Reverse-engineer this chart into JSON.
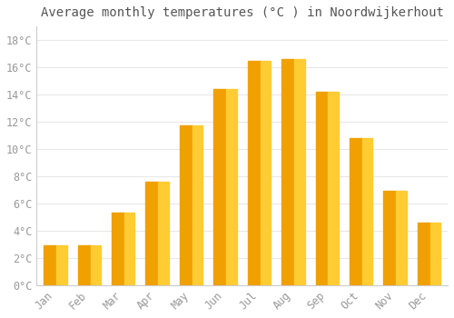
{
  "months": [
    "Jan",
    "Feb",
    "Mar",
    "Apr",
    "May",
    "Jun",
    "Jul",
    "Aug",
    "Sep",
    "Oct",
    "Nov",
    "Dec"
  ],
  "temperatures": [
    2.9,
    2.9,
    5.3,
    7.6,
    11.7,
    14.4,
    16.5,
    16.6,
    14.2,
    10.8,
    6.9,
    4.6
  ],
  "bar_color_bottom": "#F5A800",
  "bar_color_top": "#FFD966",
  "title": "Average monthly temperatures (°C ) in Noordwijkerhout",
  "ylabel_ticks": [
    "0°C",
    "2°C",
    "4°C",
    "6°C",
    "8°C",
    "10°C",
    "12°C",
    "14°C",
    "16°C",
    "18°C"
  ],
  "ytick_values": [
    0,
    2,
    4,
    6,
    8,
    10,
    12,
    14,
    16,
    18
  ],
  "ylim": [
    0,
    19.0
  ],
  "background_color": "#ffffff",
  "grid_color": "#e8e8e8",
  "title_fontsize": 10,
  "tick_fontsize": 8.5,
  "tick_label_color": "#999999",
  "bar_width": 0.68
}
